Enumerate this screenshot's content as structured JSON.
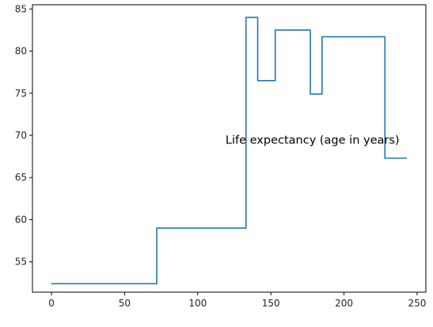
{
  "chart_data": {
    "type": "line",
    "title": "",
    "xlabel": "",
    "ylabel": "",
    "xlim": [
      -13,
      256
    ],
    "ylim": [
      51.4,
      85.5
    ],
    "x_ticks": [
      0,
      50,
      100,
      150,
      200,
      250
    ],
    "y_ticks": [
      55,
      60,
      65,
      70,
      75,
      80,
      85
    ],
    "grid": false,
    "legend": "none",
    "line_color": "#1f77b4",
    "annotations": [
      {
        "text": "Life expectancy (age in years)",
        "x": 119,
        "y": 69
      }
    ],
    "series": [
      {
        "x": [
          0,
          72,
          72,
          133,
          133,
          141,
          141,
          153,
          153,
          177,
          177,
          185,
          185,
          228,
          228,
          243
        ],
        "y": [
          52.4,
          52.4,
          59.0,
          59.0,
          84.0,
          84.0,
          76.5,
          76.5,
          82.5,
          82.5,
          74.9,
          74.9,
          81.7,
          81.7,
          67.3,
          67.3
        ]
      }
    ]
  }
}
